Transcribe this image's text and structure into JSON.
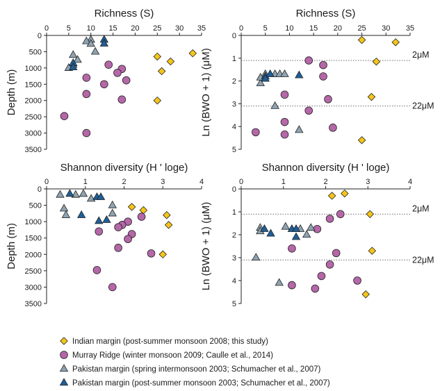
{
  "series_styles": {
    "indian": {
      "label": "Indian margin (post-summer monsoon 2008; this study)",
      "marker": "diamond",
      "color": "#f5c518"
    },
    "murray": {
      "label": "Murray Ridge (winter monsoon 2009; Caulle et al., 2014)",
      "marker": "circle",
      "color": "#b567a8"
    },
    "pak_spring": {
      "label": "Pakistan margin (spring intermonsoon 2003; Schumacher et al., 2007)",
      "marker": "triangle",
      "color": "#8fa3b0"
    },
    "pak_post": {
      "label": "Pakistan margin (post-summer monsoon 2003; Schumacher et al., 2007)",
      "marker": "triangle",
      "color": "#1f5f99"
    }
  },
  "chart_data": [
    {
      "id": "p1",
      "type": "scatter",
      "title": "Richness (S)",
      "ylabel": "Depth (m)",
      "xlim": [
        0,
        35
      ],
      "ylim": [
        0,
        3500
      ],
      "y_inverted": true,
      "xticks": [
        0,
        5,
        10,
        15,
        20,
        25,
        30,
        35
      ],
      "yticks": [
        0,
        500,
        1000,
        1500,
        2000,
        2500,
        3000,
        3500
      ],
      "series": [
        {
          "key": "indian",
          "points": [
            [
              25,
              650
            ],
            [
              26,
              1100
            ],
            [
              28,
              800
            ],
            [
              33,
              550
            ],
            [
              25,
              2000
            ]
          ]
        },
        {
          "key": "murray",
          "points": [
            [
              14,
              900
            ],
            [
              17,
              1030
            ],
            [
              16,
              1150
            ],
            [
              18,
              1380
            ],
            [
              9,
              1300
            ],
            [
              13,
              1500
            ],
            [
              9,
              1800
            ],
            [
              17,
              1970
            ],
            [
              4,
              2480
            ],
            [
              9,
              3000
            ]
          ]
        },
        {
          "key": "pak_spring",
          "points": [
            [
              10,
              130
            ],
            [
              9,
              180
            ],
            [
              10,
              260
            ],
            [
              11,
              500
            ],
            [
              6,
              600
            ],
            [
              7,
              750
            ],
            [
              6,
              900
            ],
            [
              5,
              1000
            ]
          ]
        },
        {
          "key": "pak_post",
          "points": [
            [
              13,
              130
            ],
            [
              13,
              250
            ],
            [
              6,
              850
            ],
            [
              6,
              980
            ]
          ]
        }
      ]
    },
    {
      "id": "p2",
      "type": "scatter",
      "title": "Richness (S)",
      "ylabel": "Ln (BWO + 1) (μM)",
      "xlim": [
        0,
        35
      ],
      "ylim": [
        0,
        5
      ],
      "y_inverted": true,
      "xticks": [
        0,
        5,
        10,
        15,
        20,
        25,
        30,
        35
      ],
      "yticks": [
        0,
        1,
        2,
        3,
        4,
        5
      ],
      "reference_lines": [
        {
          "y": 1.1,
          "label": "2μM"
        },
        {
          "y": 3.1,
          "label": "22μM"
        }
      ],
      "series": [
        {
          "key": "indian",
          "points": [
            [
              25,
              0.2
            ],
            [
              32,
              0.3
            ],
            [
              28,
              1.15
            ],
            [
              27,
              2.7
            ],
            [
              25,
              4.6
            ]
          ]
        },
        {
          "key": "murray",
          "points": [
            [
              14,
              1.1
            ],
            [
              17,
              1.3
            ],
            [
              17,
              1.8
            ],
            [
              9,
              2.6
            ],
            [
              18,
              2.8
            ],
            [
              14,
              3.3
            ],
            [
              9,
              3.8
            ],
            [
              19,
              4.05
            ],
            [
              3,
              4.25
            ],
            [
              9,
              4.35
            ]
          ]
        },
        {
          "key": "pak_spring",
          "points": [
            [
              5,
              1.7
            ],
            [
              7,
              1.7
            ],
            [
              8,
              1.7
            ],
            [
              9,
              1.7
            ],
            [
              4,
              2.1
            ],
            [
              4,
              1.85
            ],
            [
              7,
              3.1
            ],
            [
              12,
              4.15
            ]
          ]
        },
        {
          "key": "pak_post",
          "points": [
            [
              5,
              1.8
            ],
            [
              6,
              1.7
            ],
            [
              5,
              1.9
            ],
            [
              12,
              1.75
            ]
          ]
        }
      ]
    },
    {
      "id": "p3",
      "type": "scatter",
      "title": "Shannon diversity (H ' loge)",
      "ylabel": "Depth (m)",
      "xlim": [
        0,
        4
      ],
      "ylim": [
        0,
        3500
      ],
      "y_inverted": true,
      "xticks": [
        0,
        1,
        2,
        3,
        4
      ],
      "yticks": [
        0,
        500,
        1000,
        1500,
        2000,
        2500,
        3000,
        3500
      ],
      "series": [
        {
          "key": "indian",
          "points": [
            [
              2.2,
              550
            ],
            [
              2.5,
              650
            ],
            [
              3.1,
              800
            ],
            [
              3.15,
              1100
            ],
            [
              3.0,
              2000
            ]
          ]
        },
        {
          "key": "murray",
          "points": [
            [
              2.45,
              850
            ],
            [
              2.1,
              1000
            ],
            [
              1.95,
              1100
            ],
            [
              2.2,
              1380
            ],
            [
              1.85,
              1170
            ],
            [
              1.35,
              1300
            ],
            [
              2.1,
              1530
            ],
            [
              1.85,
              1800
            ],
            [
              2.7,
              1970
            ],
            [
              1.3,
              2480
            ],
            [
              1.7,
              3000
            ]
          ]
        },
        {
          "key": "pak_spring",
          "points": [
            [
              0.35,
              180
            ],
            [
              0.75,
              180
            ],
            [
              0.95,
              150
            ],
            [
              1.15,
              300
            ],
            [
              0.45,
              600
            ],
            [
              0.5,
              800
            ],
            [
              1.7,
              500
            ],
            [
              1.7,
              750
            ]
          ]
        },
        {
          "key": "pak_post",
          "points": [
            [
              0.6,
              150
            ],
            [
              1.3,
              250
            ],
            [
              1.4,
              250
            ],
            [
              0.9,
              800
            ],
            [
              1.35,
              980
            ],
            [
              1.55,
              950
            ]
          ]
        }
      ]
    },
    {
      "id": "p4",
      "type": "scatter",
      "title": "Shannon diversity (H ' loge)",
      "ylabel": "Ln (BWO + 1) (μM)",
      "xlim": [
        0,
        4
      ],
      "ylim": [
        0,
        5
      ],
      "y_inverted": true,
      "xticks": [
        0,
        1,
        2,
        3,
        4
      ],
      "yticks": [
        0,
        1,
        2,
        3,
        4,
        5
      ],
      "reference_lines": [
        {
          "y": 1.1,
          "label": "2μM"
        },
        {
          "y": 3.1,
          "label": "22μM"
        }
      ],
      "series": [
        {
          "key": "indian",
          "points": [
            [
              2.15,
              0.3
            ],
            [
              2.45,
              0.2
            ],
            [
              3.05,
              1.1
            ],
            [
              3.1,
              2.7
            ],
            [
              2.95,
              4.6
            ]
          ]
        },
        {
          "key": "murray",
          "points": [
            [
              2.35,
              1.1
            ],
            [
              2.1,
              1.3
            ],
            [
              1.8,
              1.75
            ],
            [
              1.2,
              2.6
            ],
            [
              2.25,
              2.8
            ],
            [
              2.1,
              3.3
            ],
            [
              1.9,
              3.8
            ],
            [
              2.75,
              4.0
            ],
            [
              1.2,
              4.2
            ],
            [
              1.75,
              4.35
            ]
          ]
        },
        {
          "key": "pak_spring",
          "points": [
            [
              0.45,
              1.7
            ],
            [
              0.45,
              1.85
            ],
            [
              1.05,
              1.65
            ],
            [
              1.4,
              1.75
            ],
            [
              1.55,
              2.0
            ],
            [
              1.65,
              1.7
            ],
            [
              0.35,
              3.0
            ],
            [
              0.9,
              4.1
            ]
          ]
        },
        {
          "key": "pak_post",
          "points": [
            [
              0.55,
              1.75
            ],
            [
              0.7,
              1.95
            ],
            [
              1.2,
              1.75
            ],
            [
              1.3,
              1.75
            ],
            [
              1.3,
              2.1
            ]
          ]
        }
      ]
    }
  ]
}
